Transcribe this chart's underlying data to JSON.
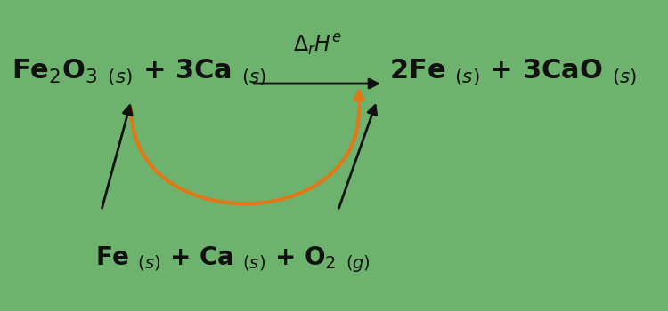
{
  "bg_color": "#6db36d",
  "text_color": "#111111",
  "orange_color": "#e07818",
  "arrow_color": "#111111",
  "fontsize_main": 22,
  "fontsize_sub": 14,
  "fontsize_delta": 17
}
